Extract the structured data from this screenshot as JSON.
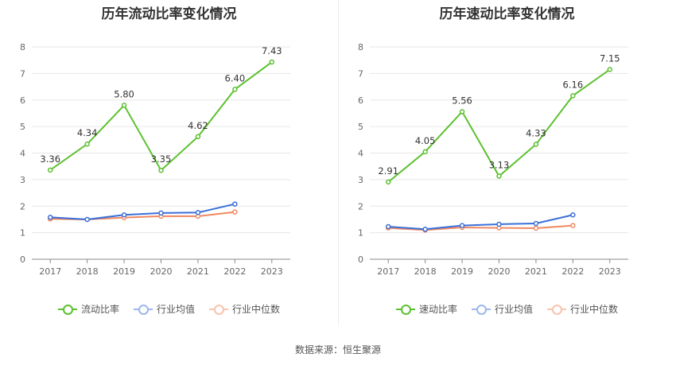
{
  "source_text": "数据来源：恒生聚源",
  "chart_data": [
    {
      "type": "line",
      "title": "历年流动比率变化情况",
      "categories": [
        "2017",
        "2018",
        "2019",
        "2020",
        "2021",
        "2022",
        "2023"
      ],
      "ylim": [
        0,
        8
      ],
      "yticks": [
        "0",
        "1",
        "2",
        "3",
        "4",
        "5",
        "6",
        "7",
        "8"
      ],
      "grid": true,
      "legend_position": "bottom",
      "series": [
        {
          "name": "流动比率",
          "color": "#5cc12f",
          "values": [
            3.36,
            4.34,
            5.8,
            3.35,
            4.62,
            6.4,
            7.43
          ],
          "labels": [
            "3.36",
            "4.34",
            "5.80",
            "3.35",
            "4.62",
            "6.40",
            "7.43"
          ]
        },
        {
          "name": "行业均值",
          "color": "#3a6fd8",
          "values": [
            1.58,
            1.5,
            1.67,
            1.74,
            1.76,
            2.08,
            null
          ]
        },
        {
          "name": "行业中位数",
          "color": "#f08860",
          "values": [
            1.52,
            1.5,
            1.57,
            1.62,
            1.62,
            1.78,
            null
          ]
        }
      ]
    },
    {
      "type": "line",
      "title": "历年速动比率变化情况",
      "categories": [
        "2017",
        "2018",
        "2019",
        "2020",
        "2021",
        "2022",
        "2023"
      ],
      "ylim": [
        0,
        8
      ],
      "yticks": [
        "0",
        "1",
        "2",
        "3",
        "4",
        "5",
        "6",
        "7",
        "8"
      ],
      "grid": true,
      "legend_position": "bottom",
      "series": [
        {
          "name": "速动比率",
          "color": "#5cc12f",
          "values": [
            2.91,
            4.05,
            5.56,
            3.13,
            4.33,
            6.16,
            7.15
          ],
          "labels": [
            "2.91",
            "4.05",
            "5.56",
            "3.13",
            "4.33",
            "6.16",
            "7.15"
          ]
        },
        {
          "name": "行业均值",
          "color": "#3a6fd8",
          "values": [
            1.23,
            1.13,
            1.27,
            1.32,
            1.35,
            1.67,
            null
          ]
        },
        {
          "name": "行业中位数",
          "color": "#f08860",
          "values": [
            1.18,
            1.1,
            1.2,
            1.18,
            1.17,
            1.27,
            null
          ]
        }
      ]
    }
  ]
}
